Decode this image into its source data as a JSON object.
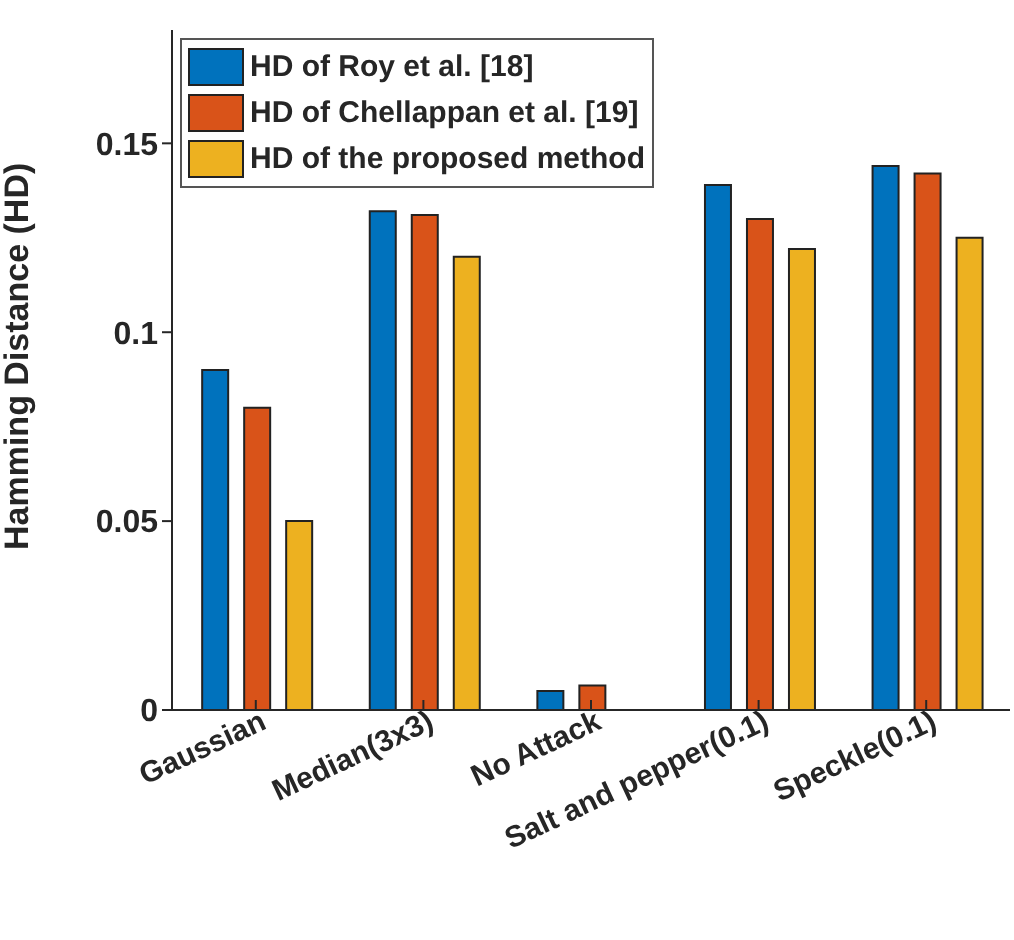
{
  "chart_data": {
    "type": "bar",
    "ylabel": "Hamming Distance (HD)",
    "categories": [
      "Gaussian",
      "Median(3x3)",
      "No Attack",
      "Salt and pepper(0.1)",
      "Speckle(0.1)"
    ],
    "series": [
      {
        "name": "HD of Roy et al. [18]",
        "color": "#0072bd",
        "values": [
          0.09,
          0.132,
          0.005,
          0.139,
          0.144
        ]
      },
      {
        "name": "HD of Chellappan et al. [19]",
        "color": "#d95319",
        "values": [
          0.08,
          0.131,
          0.0065,
          0.13,
          0.142
        ]
      },
      {
        "name": "HD of the proposed method",
        "color": "#edb120",
        "values": [
          0.05,
          0.12,
          0,
          0.122,
          0.125
        ]
      }
    ],
    "ylim": [
      0,
      0.18
    ],
    "yticks": [
      0,
      0.05,
      0.1,
      0.15
    ],
    "grid": false,
    "legend": "top left"
  }
}
